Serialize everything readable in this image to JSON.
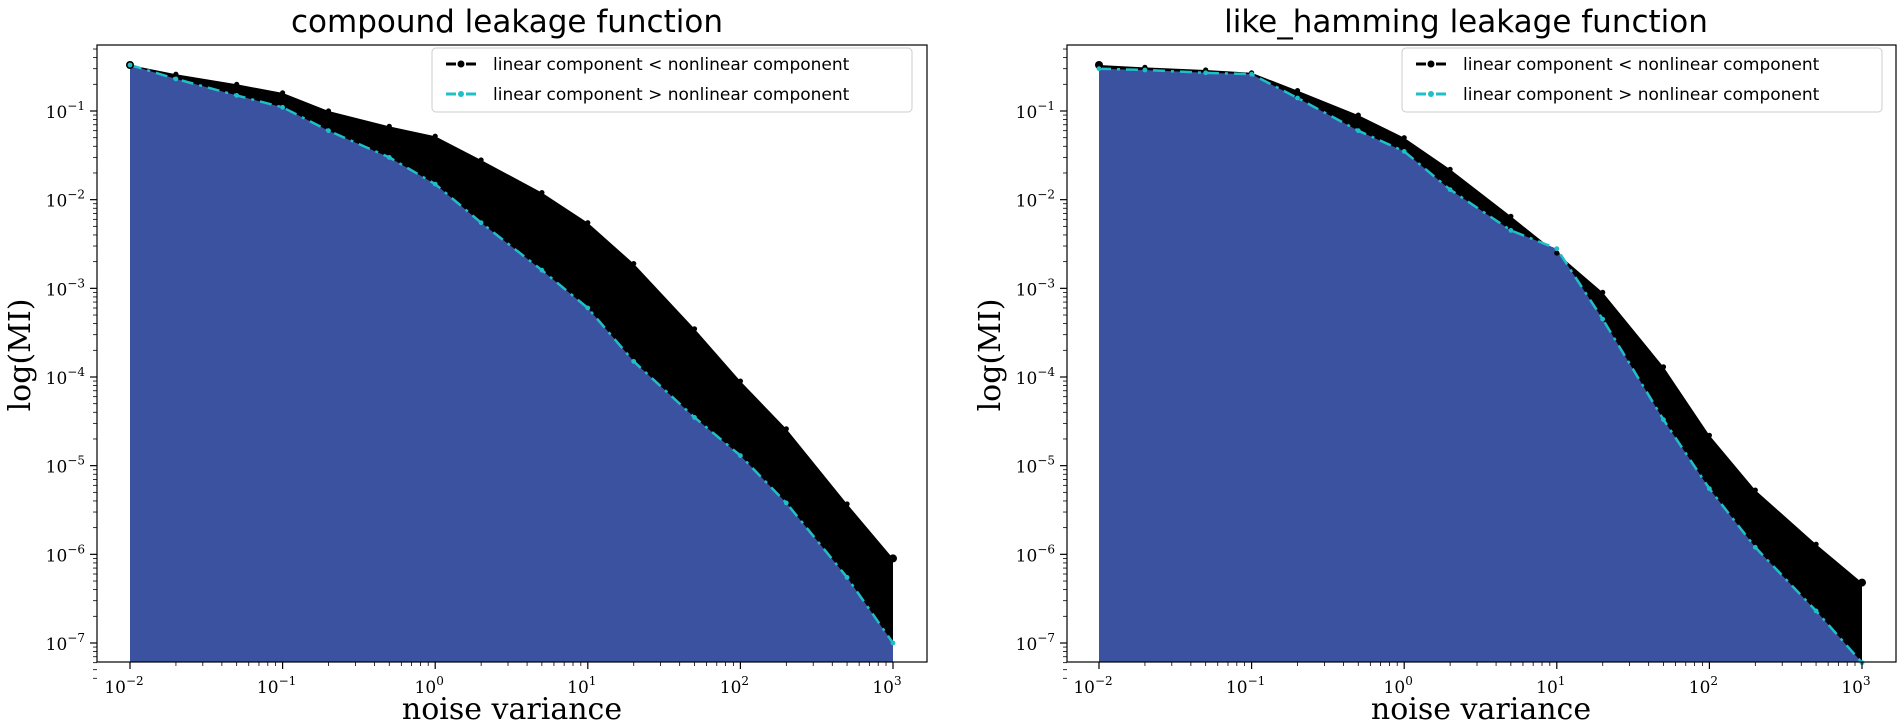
{
  "chart_data": [
    {
      "type": "area",
      "title": "compound leakage function",
      "xlabel": "noise variance",
      "ylabel": "log(MI)",
      "xscale": "log",
      "yscale": "log",
      "xlim": [
        0.01,
        1000
      ],
      "ylim": [
        4e-08,
        0.6
      ],
      "xticks": [
        {
          "base": "10",
          "exp": "−2"
        },
        {
          "base": "10",
          "exp": "−1"
        },
        {
          "base": "10",
          "exp": "0"
        },
        {
          "base": "10",
          "exp": "1"
        },
        {
          "base": "10",
          "exp": "2"
        },
        {
          "base": "10",
          "exp": "3"
        }
      ],
      "yticks": [
        {
          "base": "10",
          "exp": "−7"
        },
        {
          "base": "10",
          "exp": "−6"
        },
        {
          "base": "10",
          "exp": "−5"
        },
        {
          "base": "10",
          "exp": "−4"
        },
        {
          "base": "10",
          "exp": "−3"
        },
        {
          "base": "10",
          "exp": "−2"
        },
        {
          "base": "10",
          "exp": "−1"
        }
      ],
      "legend_position": "top-right",
      "series": [
        {
          "name": "linear component < nonlinear component",
          "color": "#000000",
          "fill": "#000000",
          "x": [
            0.01,
            0.02,
            0.05,
            0.1,
            0.2,
            0.5,
            1,
            2,
            5,
            10,
            20,
            50,
            100,
            200,
            500,
            1000
          ],
          "y": [
            0.33,
            0.26,
            0.2,
            0.16,
            0.1,
            0.067,
            0.052,
            0.028,
            0.012,
            0.0055,
            0.0019,
            0.00035,
            9e-05,
            2.6e-05,
            3.7e-06,
            9e-07
          ]
        },
        {
          "name": "linear component > nonlinear component",
          "color": "#1fbfc8",
          "fill": "#3a52a0",
          "x": [
            0.01,
            0.02,
            0.05,
            0.1,
            0.2,
            0.5,
            1,
            2,
            5,
            10,
            20,
            50,
            100,
            200,
            500,
            1000
          ],
          "y": [
            0.33,
            0.23,
            0.15,
            0.11,
            0.06,
            0.03,
            0.015,
            0.0055,
            0.0016,
            0.0006,
            0.00015,
            3.5e-05,
            1.3e-05,
            3.8e-06,
            5.5e-07,
            1e-07
          ]
        }
      ]
    },
    {
      "type": "area",
      "title": "like_hamming leakage function",
      "xlabel": "noise variance",
      "ylabel": "log(MI)",
      "xscale": "log",
      "yscale": "log",
      "xlim": [
        0.01,
        1000
      ],
      "ylim": [
        4e-08,
        0.6
      ],
      "xticks": [
        {
          "base": "10",
          "exp": "−2"
        },
        {
          "base": "10",
          "exp": "−1"
        },
        {
          "base": "10",
          "exp": "0"
        },
        {
          "base": "10",
          "exp": "1"
        },
        {
          "base": "10",
          "exp": "2"
        },
        {
          "base": "10",
          "exp": "3"
        }
      ],
      "yticks": [
        {
          "base": "10",
          "exp": "−7"
        },
        {
          "base": "10",
          "exp": "−6"
        },
        {
          "base": "10",
          "exp": "−5"
        },
        {
          "base": "10",
          "exp": "−4"
        },
        {
          "base": "10",
          "exp": "−3"
        },
        {
          "base": "10",
          "exp": "−2"
        },
        {
          "base": "10",
          "exp": "−1"
        }
      ],
      "legend_position": "top-right",
      "series": [
        {
          "name": "linear component < nonlinear component",
          "color": "#000000",
          "fill": "#000000",
          "x": [
            0.01,
            0.02,
            0.05,
            0.1,
            0.2,
            0.5,
            1,
            2,
            5,
            10,
            20,
            50,
            100,
            200,
            500,
            1000
          ],
          "y": [
            0.33,
            0.31,
            0.29,
            0.27,
            0.17,
            0.09,
            0.05,
            0.022,
            0.0065,
            0.0025,
            0.0009,
            0.00013,
            2.2e-05,
            5.3e-06,
            1.3e-06,
            4.8e-07
          ]
        },
        {
          "name": "linear component > nonlinear component",
          "color": "#1fbfc8",
          "fill": "#3a52a0",
          "x": [
            0.01,
            0.02,
            0.05,
            0.1,
            0.2,
            0.5,
            1,
            2,
            5,
            10,
            20,
            50,
            100,
            200,
            500,
            1000
          ],
          "y": [
            0.3,
            0.29,
            0.27,
            0.26,
            0.14,
            0.06,
            0.035,
            0.013,
            0.0045,
            0.0028,
            0.00045,
            3.3e-05,
            5.5e-06,
            1.2e-06,
            2.3e-07,
            6e-08
          ]
        }
      ]
    }
  ]
}
